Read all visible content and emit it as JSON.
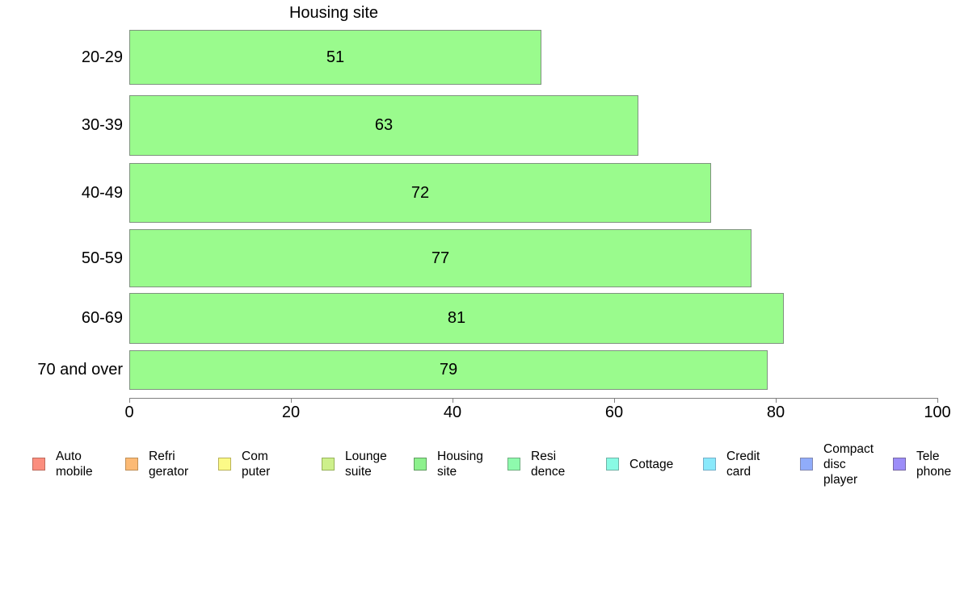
{
  "chart_data": {
    "type": "bar",
    "orientation": "horizontal",
    "title": "Housing site",
    "categories": [
      "20-29",
      "30-39",
      "40-49",
      "50-59",
      "60-69",
      "70 and over"
    ],
    "values": [
      51,
      63,
      72,
      77,
      81,
      79
    ],
    "xlabel": "",
    "ylabel": "",
    "xlim": [
      0,
      100
    ],
    "x_ticks": [
      0,
      20,
      40,
      60,
      80,
      100
    ],
    "grid": false,
    "value_labels_shown": true,
    "bar_color": "#9afb8d",
    "bar_border_color": "#7f937f",
    "axis_color": "#7f7f7f",
    "text_color": "#000000",
    "legend_position": "bottom",
    "legend": [
      {
        "label": "Auto mobile",
        "lines": [
          "Auto",
          "mobile"
        ],
        "color": "#fb8e7e",
        "border": "#be6b5d"
      },
      {
        "label": "Refri gerator",
        "lines": [
          "Refri",
          "gerator"
        ],
        "color": "#fcba75",
        "border": "#c08f55"
      },
      {
        "label": "Com puter",
        "lines": [
          "Com",
          "puter"
        ],
        "color": "#fcfa87",
        "border": "#b9b258"
      },
      {
        "label": "Lounge suite",
        "lines": [
          "Lounge",
          "suite"
        ],
        "color": "#cdf08b",
        "border": "#97b35a"
      },
      {
        "label": "Housing site",
        "lines": [
          "Housing",
          "site"
        ],
        "color": "#8df18d",
        "border": "#5e9e5e"
      },
      {
        "label": "Resi dence",
        "lines": [
          "Resi",
          "dence"
        ],
        "color": "#8efaad",
        "border": "#6eae7f"
      },
      {
        "label": "Cottage",
        "lines": [
          "Cottage"
        ],
        "color": "#89fae4",
        "border": "#6fb2a6"
      },
      {
        "label": "Credit card",
        "lines": [
          "Credit",
          "card"
        ],
        "color": "#8ae9fb",
        "border": "#74aec8"
      },
      {
        "label": "Compact disc player",
        "lines": [
          "Compact",
          "disc",
          "player"
        ],
        "color": "#90acfa",
        "border": "#8288b0"
      },
      {
        "label": "Tele phone",
        "lines": [
          "Tele",
          "phone"
        ],
        "color": "#9c8df8",
        "border": "#7668a4"
      }
    ]
  }
}
